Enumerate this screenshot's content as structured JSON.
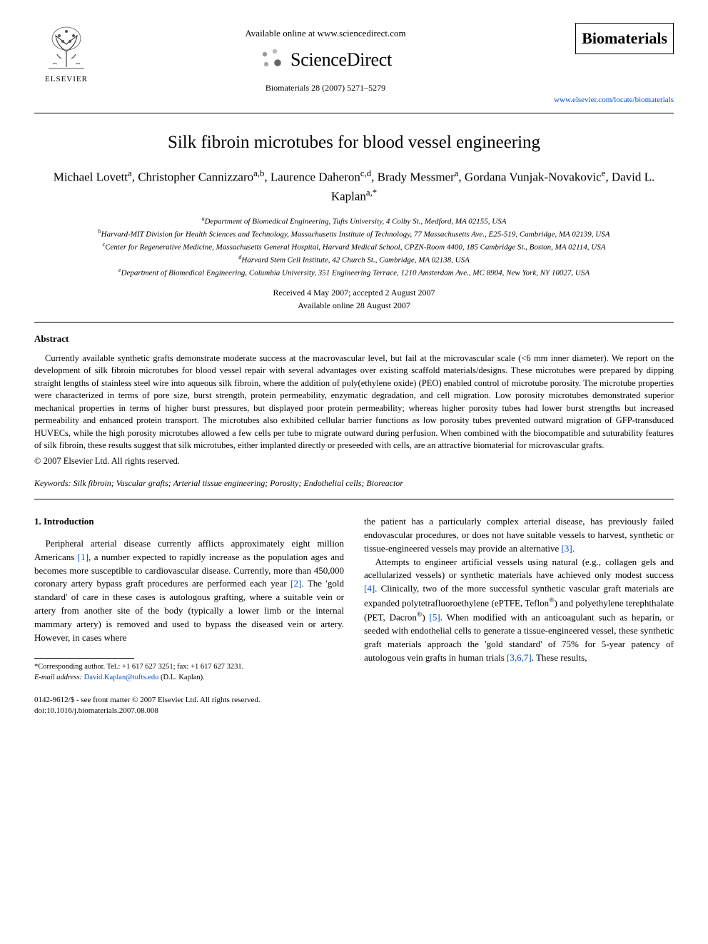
{
  "header": {
    "available_online": "Available online at www.sciencedirect.com",
    "sciencedirect": "ScienceDirect",
    "elsevier_label": "ELSEVIER",
    "citation": "Biomaterials 28 (2007) 5271–5279",
    "journal_name": "Biomaterials",
    "journal_url": "www.elsevier.com/locate/biomaterials"
  },
  "title": "Silk fibroin microtubes for blood vessel engineering",
  "authors_html": "Michael Lovett<sup>a</sup>, Christopher Cannizzaro<sup>a,b</sup>, Laurence Daheron<sup>c,d</sup>, Brady Messmer<sup>a</sup>, Gordana Vunjak-Novakovic<sup>e</sup>, David L. Kaplan<sup>a,*</sup>",
  "affiliations": [
    "<sup>a</sup>Department of Biomedical Engineering, Tufts University, 4 Colby St., Medford, MA 02155, USA",
    "<sup>b</sup>Harvard-MIT Division for Health Sciences and Technology, Massachusetts Institute of Technology, 77 Massachusetts Ave., E25-519, Cambridge, MA 02139, USA",
    "<sup>c</sup>Center for Regenerative Medicine, Massachusetts General Hospital, Harvard Medical School, CPZN-Room 4400, 185 Cambridge St., Boston, MA 02114, USA",
    "<sup>d</sup>Harvard Stem Cell Institute, 42 Church St., Cambridge, MA 02138, USA",
    "<sup>e</sup>Department of Biomedical Engineering, Columbia University, 351 Engineering Terrace, 1210 Amsterdam Ave., MC 8904, New York, NY 10027, USA"
  ],
  "dates": {
    "received": "Received 4 May 2007; accepted 2 August 2007",
    "online": "Available online 28 August 2007"
  },
  "abstract": {
    "heading": "Abstract",
    "body": "Currently available synthetic grafts demonstrate moderate success at the macrovascular level, but fail at the microvascular scale (<6 mm inner diameter). We report on the development of silk fibroin microtubes for blood vessel repair with several advantages over existing scaffold materials/designs. These microtubes were prepared by dipping straight lengths of stainless steel wire into aqueous silk fibroin, where the addition of poly(ethylene oxide) (PEO) enabled control of microtube porosity. The microtube properties were characterized in terms of pore size, burst strength, protein permeability, enzymatic degradation, and cell migration. Low porosity microtubes demonstrated superior mechanical properties in terms of higher burst pressures, but displayed poor protein permeability; whereas higher porosity tubes had lower burst strengths but increased permeability and enhanced protein transport. The microtubes also exhibited cellular barrier functions as low porosity tubes prevented outward migration of GFP-transduced HUVECs, while the high porosity microtubes allowed a few cells per tube to migrate outward during perfusion. When combined with the biocompatible and suturability features of silk fibroin, these results suggest that silk microtubes, either implanted directly or preseeded with cells, are an attractive biomaterial for microvascular grafts.",
    "copyright": "© 2007 Elsevier Ltd. All rights reserved."
  },
  "keywords_label": "Keywords:",
  "keywords": "Silk fibroin; Vascular grafts; Arterial tissue engineering; Porosity; Endothelial cells; Bioreactor",
  "section1": {
    "heading": "1. Introduction",
    "left_para": "Peripheral arterial disease currently afflicts approximately eight million Americans <span class=\"ref\">[1]</span>, a number expected to rapidly increase as the population ages and becomes more susceptible to cardiovascular disease. Currently, more than 450,000 coronary artery bypass graft procedures are performed each year <span class=\"ref\">[2]</span>. The 'gold standard' of care in these cases is autologous grafting, where a suitable vein or artery from another site of the body (typically a lower limb or the internal mammary artery) is removed and used to bypass the diseased vein or artery. However, in cases where",
    "right_para1": "the patient has a particularly complex arterial disease, has previously failed endovascular procedures, or does not have suitable vessels to harvest, synthetic or tissue-engineered vessels may provide an alternative <span class=\"ref\">[3]</span>.",
    "right_para2": "Attempts to engineer artificial vessels using natural (e.g., collagen gels and acellularized vessels) or synthetic materials have achieved only modest success <span class=\"ref\">[4]</span>. Clinically, two of the more successful synthetic vascular graft materials are expanded polytetrafluoroethylene (ePTFE, Teflon<sup>®</sup>) and polyethylene terephthalate (PET, Dacron<sup>®</sup>) <span class=\"ref\">[5]</span>. When modified with an anticoagulant such as heparin, or seeded with endothelial cells to generate a tissue-engineered vessel, these synthetic graft materials approach the 'gold standard' of 75% for 5-year patency of autologous vein grafts in human trials <span class=\"ref\">[3,6,7]</span>. These results,"
  },
  "footnote": {
    "corresponding": "*Corresponding author. Tel.: +1 617 627 3251; fax: +1 617 627 3231.",
    "email_label": "E-mail address:",
    "email": "David.Kaplan@tufts.edu",
    "email_person": "(D.L. Kaplan)."
  },
  "footer": {
    "left": "0142-9612/$ - see front matter © 2007 Elsevier Ltd. All rights reserved.",
    "doi": "doi:10.1016/j.biomaterials.2007.08.008"
  },
  "colors": {
    "link": "#0050cc",
    "text": "#000000",
    "bg": "#ffffff"
  }
}
